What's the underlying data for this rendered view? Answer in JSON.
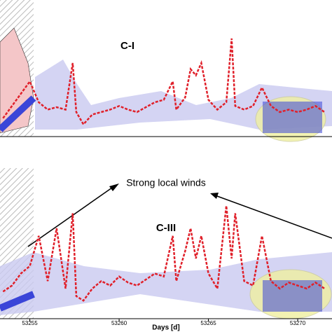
{
  "chart_data": [
    {
      "type": "line",
      "title": "C-I",
      "color": "#e0202a",
      "x": [
        53253.5,
        53254,
        53254.5,
        53255,
        53255.5,
        53256,
        53256.5,
        53257,
        53257.4,
        53257.6,
        53258,
        53258.5,
        53259,
        53259.5,
        53260,
        53260.5,
        53261,
        53261.5,
        53262,
        53262.5,
        53263,
        53263.2,
        53263.7,
        53264,
        53264.3,
        53264.6,
        53265,
        53265.5,
        53266,
        53266.3,
        53266.5,
        53267,
        53267.5,
        53268,
        53268.5,
        53269,
        53269.5,
        53270,
        53270.5,
        53271,
        53271.5
      ],
      "values": [
        15,
        25,
        35,
        45,
        28,
        22,
        24,
        22,
        60,
        20,
        10,
        18,
        20,
        22,
        25,
        22,
        20,
        24,
        28,
        30,
        45,
        22,
        32,
        55,
        50,
        60,
        30,
        22,
        28,
        80,
        25,
        22,
        25,
        40,
        25,
        20,
        22,
        20,
        22,
        25,
        20
      ],
      "xlim": [
        53253.33,
        53271.92
      ],
      "ylim": [
        0,
        100
      ]
    },
    {
      "type": "line",
      "title": "C-III",
      "annotation": "Strong local winds",
      "xlabel": "Days [d]",
      "color": "#e0202a",
      "x": [
        53253.5,
        53254,
        53254.5,
        53255,
        53255.5,
        53256,
        53256.5,
        53257,
        53257.4,
        53257.6,
        53258,
        53258.5,
        53259,
        53259.5,
        53260,
        53260.5,
        53261,
        53261.5,
        53262,
        53262.5,
        53263,
        53263.2,
        53263.7,
        53264,
        53264.3,
        53264.6,
        53265,
        53265.5,
        53266,
        53266.3,
        53266.5,
        53267,
        53267.5,
        53268,
        53268.5,
        53269,
        53269.5,
        53270,
        53270.5,
        53271,
        53271.5
      ],
      "values": [
        18,
        22,
        30,
        35,
        55,
        25,
        60,
        20,
        70,
        15,
        12,
        20,
        25,
        22,
        28,
        24,
        22,
        26,
        30,
        28,
        55,
        25,
        45,
        60,
        40,
        55,
        30,
        20,
        75,
        40,
        70,
        25,
        22,
        55,
        25,
        20,
        24,
        22,
        20,
        24,
        20
      ],
      "xlim": [
        53253.33,
        53271.92
      ],
      "ylim": [
        0,
        100
      ],
      "xticks": [
        53255,
        53260,
        53265,
        53270
      ]
    }
  ]
}
